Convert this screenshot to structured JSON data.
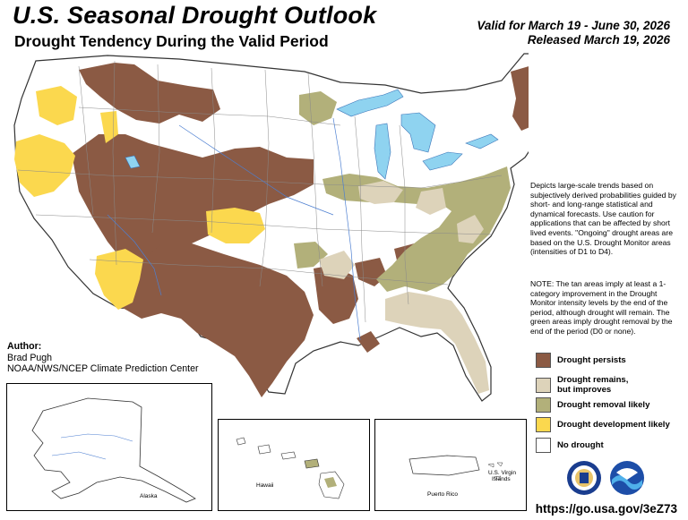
{
  "header": {
    "title": "U.S. Seasonal Drought Outlook",
    "subtitle": "Drought Tendency During the Valid Period",
    "valid": "Valid for March 19 - June 30, 2026",
    "released": "Released March 19, 2026"
  },
  "description": "Depicts large-scale trends based on subjectively derived probabilities guided by short- and long-range statistical and dynamical forecasts. Use caution for applications that can be affected by short lived events. \"Ongoing\" drought areas are based on the U.S. Drought Monitor areas (intensities of D1 to D4).",
  "note": "NOTE: The tan areas imply at least a 1-category improvement in the Drought Monitor intensity levels by the end of the period, although drought will remain. The green areas imply drought removal by the end of the period (D0 or none).",
  "legend": [
    {
      "label": "Drought persists",
      "color": "#8b5a44"
    },
    {
      "label": "Drought remains, but improves",
      "color": "#ddd3ba"
    },
    {
      "label": "Drought removal likely",
      "color": "#b2b07a"
    },
    {
      "label": "Drought development likely",
      "color": "#fbd84e"
    },
    {
      "label": "No drought",
      "color": "#ffffff"
    }
  ],
  "author": {
    "heading": "Author:",
    "name": "Brad Pugh",
    "org": "NOAA/NWS/NCEP Climate Prediction Center"
  },
  "insets": {
    "alaska": "Alaska",
    "hawaii": "Hawaii",
    "puerto_rico": "Puerto Rico",
    "virgin_islands_1": "U.S. Virgin",
    "virgin_islands_2": "Islands"
  },
  "url": "https://go.usa.gov/3eZ73",
  "colors": {
    "persists": "#8b5a44",
    "improves": "#ddd3ba",
    "removal": "#b2b07a",
    "development": "#fbd84e",
    "water": "#8fd3f0",
    "borders": "#9a9a9a"
  },
  "icons": [
    "noaa-logo-icon",
    "commerce-seal-icon"
  ]
}
